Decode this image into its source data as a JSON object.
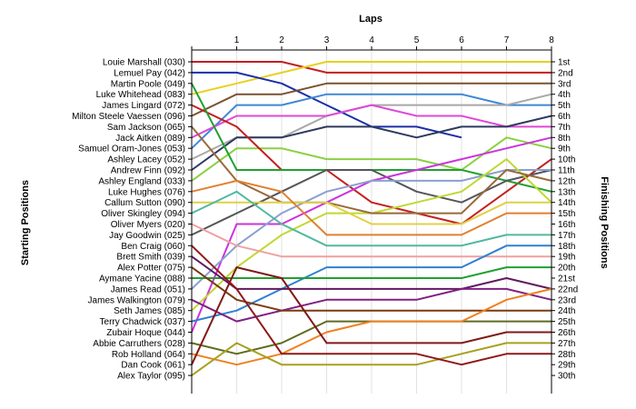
{
  "chart_data": {
    "type": "line",
    "title": "",
    "xlabel": "Laps",
    "ylabel_left": "Starting Positions",
    "ylabel_right": "Finishing Positions",
    "x_ticks": [
      "1",
      "2",
      "3",
      "4",
      "5",
      "6",
      "7",
      "8"
    ],
    "xlim": [
      0,
      8
    ],
    "ylim": [
      1,
      30
    ],
    "y_inverted": true,
    "grid": "vertical",
    "starting_labels": [
      "Louie Marshall (030)",
      "Lemuel Pay (042)",
      "Martin Poole (049)",
      "Luke Whitehead (083)",
      "James Lingard (072)",
      "Milton Steele Vaessen (096)",
      "Sam Jackson (065)",
      "Jack Aitken (089)",
      "Samuel Oram-Jones (053)",
      "Ashley Lacey (052)",
      "Andrew Finn (092)",
      "Ashley England (033)",
      "Luke Hughes (076)",
      "Callum Sutton (090)",
      "Oliver Skingley (094)",
      "Oliver Myers (020)",
      "Jay Goodwin (025)",
      "Ben Craig (060)",
      "Brett Smith (039)",
      "Alex Potter (075)",
      "Aymane Yacine (088)",
      "James Read (051)",
      "James Walkington (079)",
      "Seth James (085)",
      "Terry Chadwick (037)",
      "Zubair Hoque (044)",
      "Abbie Carruthers (028)",
      "Rob Holland (064)",
      "Dan Cook (061)",
      "Alex Taylor (095)"
    ],
    "finishing_labels": [
      {
        "pos": 1,
        "text": "1st"
      },
      {
        "pos": 2,
        "text": "2nd"
      },
      {
        "pos": 3,
        "text": "3rd"
      },
      {
        "pos": 4,
        "text": "4th"
      },
      {
        "pos": 5,
        "text": "5th"
      },
      {
        "pos": 6,
        "text": "6th"
      },
      {
        "pos": 7,
        "text": "7th"
      },
      {
        "pos": 8,
        "text": "8th"
      },
      {
        "pos": 9,
        "text": "9th"
      },
      {
        "pos": 10,
        "text": "10th"
      },
      {
        "pos": 11,
        "text": "11th"
      },
      {
        "pos": 12,
        "text": "12th"
      },
      {
        "pos": 13,
        "text": "13th"
      },
      {
        "pos": 14,
        "text": "14th"
      },
      {
        "pos": 15,
        "text": "15th"
      },
      {
        "pos": 16,
        "text": "16th"
      },
      {
        "pos": 17,
        "text": "17th"
      },
      {
        "pos": 18,
        "text": "18th"
      },
      {
        "pos": 19,
        "text": "19th"
      },
      {
        "pos": 20,
        "text": "20th"
      },
      {
        "pos": 21,
        "text": "21st"
      },
      {
        "pos": 22,
        "text": "22nd"
      },
      {
        "pos": 23,
        "text": "23rd"
      },
      {
        "pos": 24,
        "text": "24th"
      },
      {
        "pos": 25,
        "text": "25th"
      },
      {
        "pos": 26,
        "text": "26th"
      },
      {
        "pos": 27,
        "text": "27th"
      },
      {
        "pos": 28,
        "text": "28th"
      },
      {
        "pos": 29,
        "text": "29th"
      },
      {
        "pos": 30,
        "text": "30th"
      }
    ],
    "series": [
      {
        "color": "#c41e1e",
        "values": [
          1,
          1,
          1,
          2,
          2,
          2,
          2,
          2,
          2
        ]
      },
      {
        "color": "#e8d020",
        "values": [
          4,
          3,
          2,
          1,
          1,
          1,
          1,
          1,
          1
        ]
      },
      {
        "color": "#1c2fa8",
        "values": [
          2,
          2,
          3,
          5,
          7,
          7,
          8
        ]
      },
      {
        "color": "#7a5230",
        "values": [
          6,
          4,
          4,
          3,
          3,
          3,
          3,
          3,
          3
        ]
      },
      {
        "color": "#3f88d6",
        "values": [
          9,
          5,
          5,
          4,
          4,
          4,
          4,
          5,
          5
        ]
      },
      {
        "color": "#a8a8a8",
        "values": [
          10,
          8,
          8,
          6,
          5,
          5,
          5,
          5,
          4
        ]
      },
      {
        "color": "#e048d8",
        "values": [
          8,
          6,
          6,
          6,
          5,
          6,
          6,
          7,
          7
        ]
      },
      {
        "color": "#2d3a60",
        "values": [
          11,
          8,
          8,
          7,
          7,
          8,
          7,
          7,
          6
        ]
      },
      {
        "color": "#8ad040",
        "values": [
          12,
          9,
          9,
          10,
          10,
          10,
          11,
          8,
          9
        ]
      },
      {
        "color": "#c42020",
        "values": [
          5,
          7,
          11,
          11,
          14,
          15,
          16,
          13,
          10
        ]
      },
      {
        "color": "#20a030",
        "values": [
          3,
          11,
          11,
          11,
          11,
          11,
          11,
          12,
          13
        ]
      },
      {
        "color": "#55555a",
        "values": [
          17,
          15,
          13,
          11,
          11,
          13,
          14,
          12,
          11
        ]
      },
      {
        "color": "#cc33dd",
        "values": [
          26,
          16,
          16,
          14,
          12,
          11,
          10,
          9,
          8
        ]
      },
      {
        "color": "#8aa0d0",
        "values": [
          22,
          18,
          15,
          13,
          12,
          12,
          12,
          11,
          11
        ]
      },
      {
        "color": "#c0d830",
        "values": [
          24,
          20,
          17,
          15,
          15,
          14,
          13,
          10,
          14
        ]
      },
      {
        "color": "#9a6a3a",
        "values": [
          7,
          12,
          14,
          14,
          15,
          15,
          15,
          11,
          12
        ]
      },
      {
        "color": "#e0d048",
        "values": [
          14,
          14,
          14,
          14,
          16,
          16,
          16,
          14,
          14
        ]
      },
      {
        "color": "#50b8a0",
        "values": [
          15,
          13,
          16,
          18,
          18,
          18,
          18,
          17,
          17
        ]
      },
      {
        "color": "#e08030",
        "values": [
          13,
          12,
          13,
          17,
          17,
          17,
          17,
          15,
          15
        ]
      },
      {
        "color": "#f0a0a0",
        "values": [
          16,
          18,
          19,
          19,
          19,
          19,
          19,
          19,
          19
        ]
      },
      {
        "color": "#3080d0",
        "values": [
          25,
          24,
          22,
          20,
          20,
          20,
          20,
          18,
          18
        ]
      },
      {
        "color": "#20a030",
        "values": [
          21,
          21,
          21,
          21,
          21,
          21,
          21,
          20,
          20
        ]
      },
      {
        "color": "#601a60",
        "values": [
          19,
          22,
          22,
          22,
          22,
          22,
          22,
          21,
          22
        ]
      },
      {
        "color": "#802080",
        "values": [
          23,
          25,
          24,
          23,
          23,
          23,
          22,
          22,
          23
        ]
      },
      {
        "color": "#7a3a10",
        "values": [
          20,
          23,
          24,
          24,
          24,
          24,
          24,
          24,
          24
        ]
      },
      {
        "color": "#606a20",
        "values": [
          27,
          28,
          27,
          25,
          25,
          25,
          25,
          25,
          25
        ]
      },
      {
        "color": "#f08020",
        "values": [
          28,
          29,
          28,
          26,
          25,
          25,
          25,
          23,
          22
        ]
      },
      {
        "color": "#801818",
        "values": [
          29,
          20,
          21,
          27,
          27,
          27,
          27,
          26,
          26
        ]
      },
      {
        "color": "#a8a020",
        "values": [
          30,
          27,
          29,
          29,
          29,
          29,
          28,
          27,
          27
        ]
      },
      {
        "color": "#901818",
        "values": [
          18,
          22,
          28,
          28,
          28,
          28,
          29,
          28,
          28
        ]
      }
    ]
  }
}
